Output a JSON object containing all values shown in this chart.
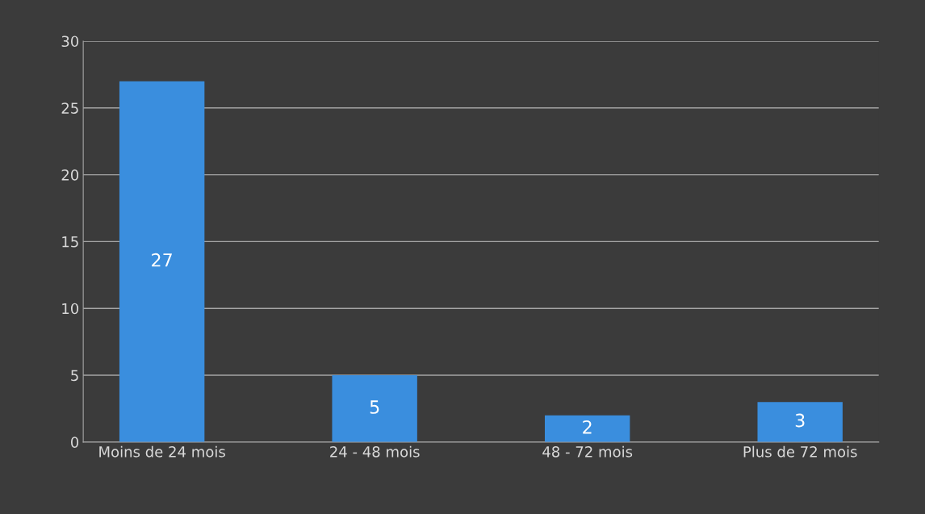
{
  "chart_data": {
    "type": "bar",
    "categories": [
      "Moins de 24 mois",
      "24 - 48 mois",
      "48 - 72 mois",
      "Plus de 72 mois"
    ],
    "values": [
      27,
      5,
      2,
      3
    ],
    "color": "#3a8ede",
    "ylim": [
      0,
      30
    ],
    "yticks": [
      0,
      5,
      10,
      15,
      20,
      25,
      30
    ],
    "grid": "y",
    "data_labels": true
  }
}
